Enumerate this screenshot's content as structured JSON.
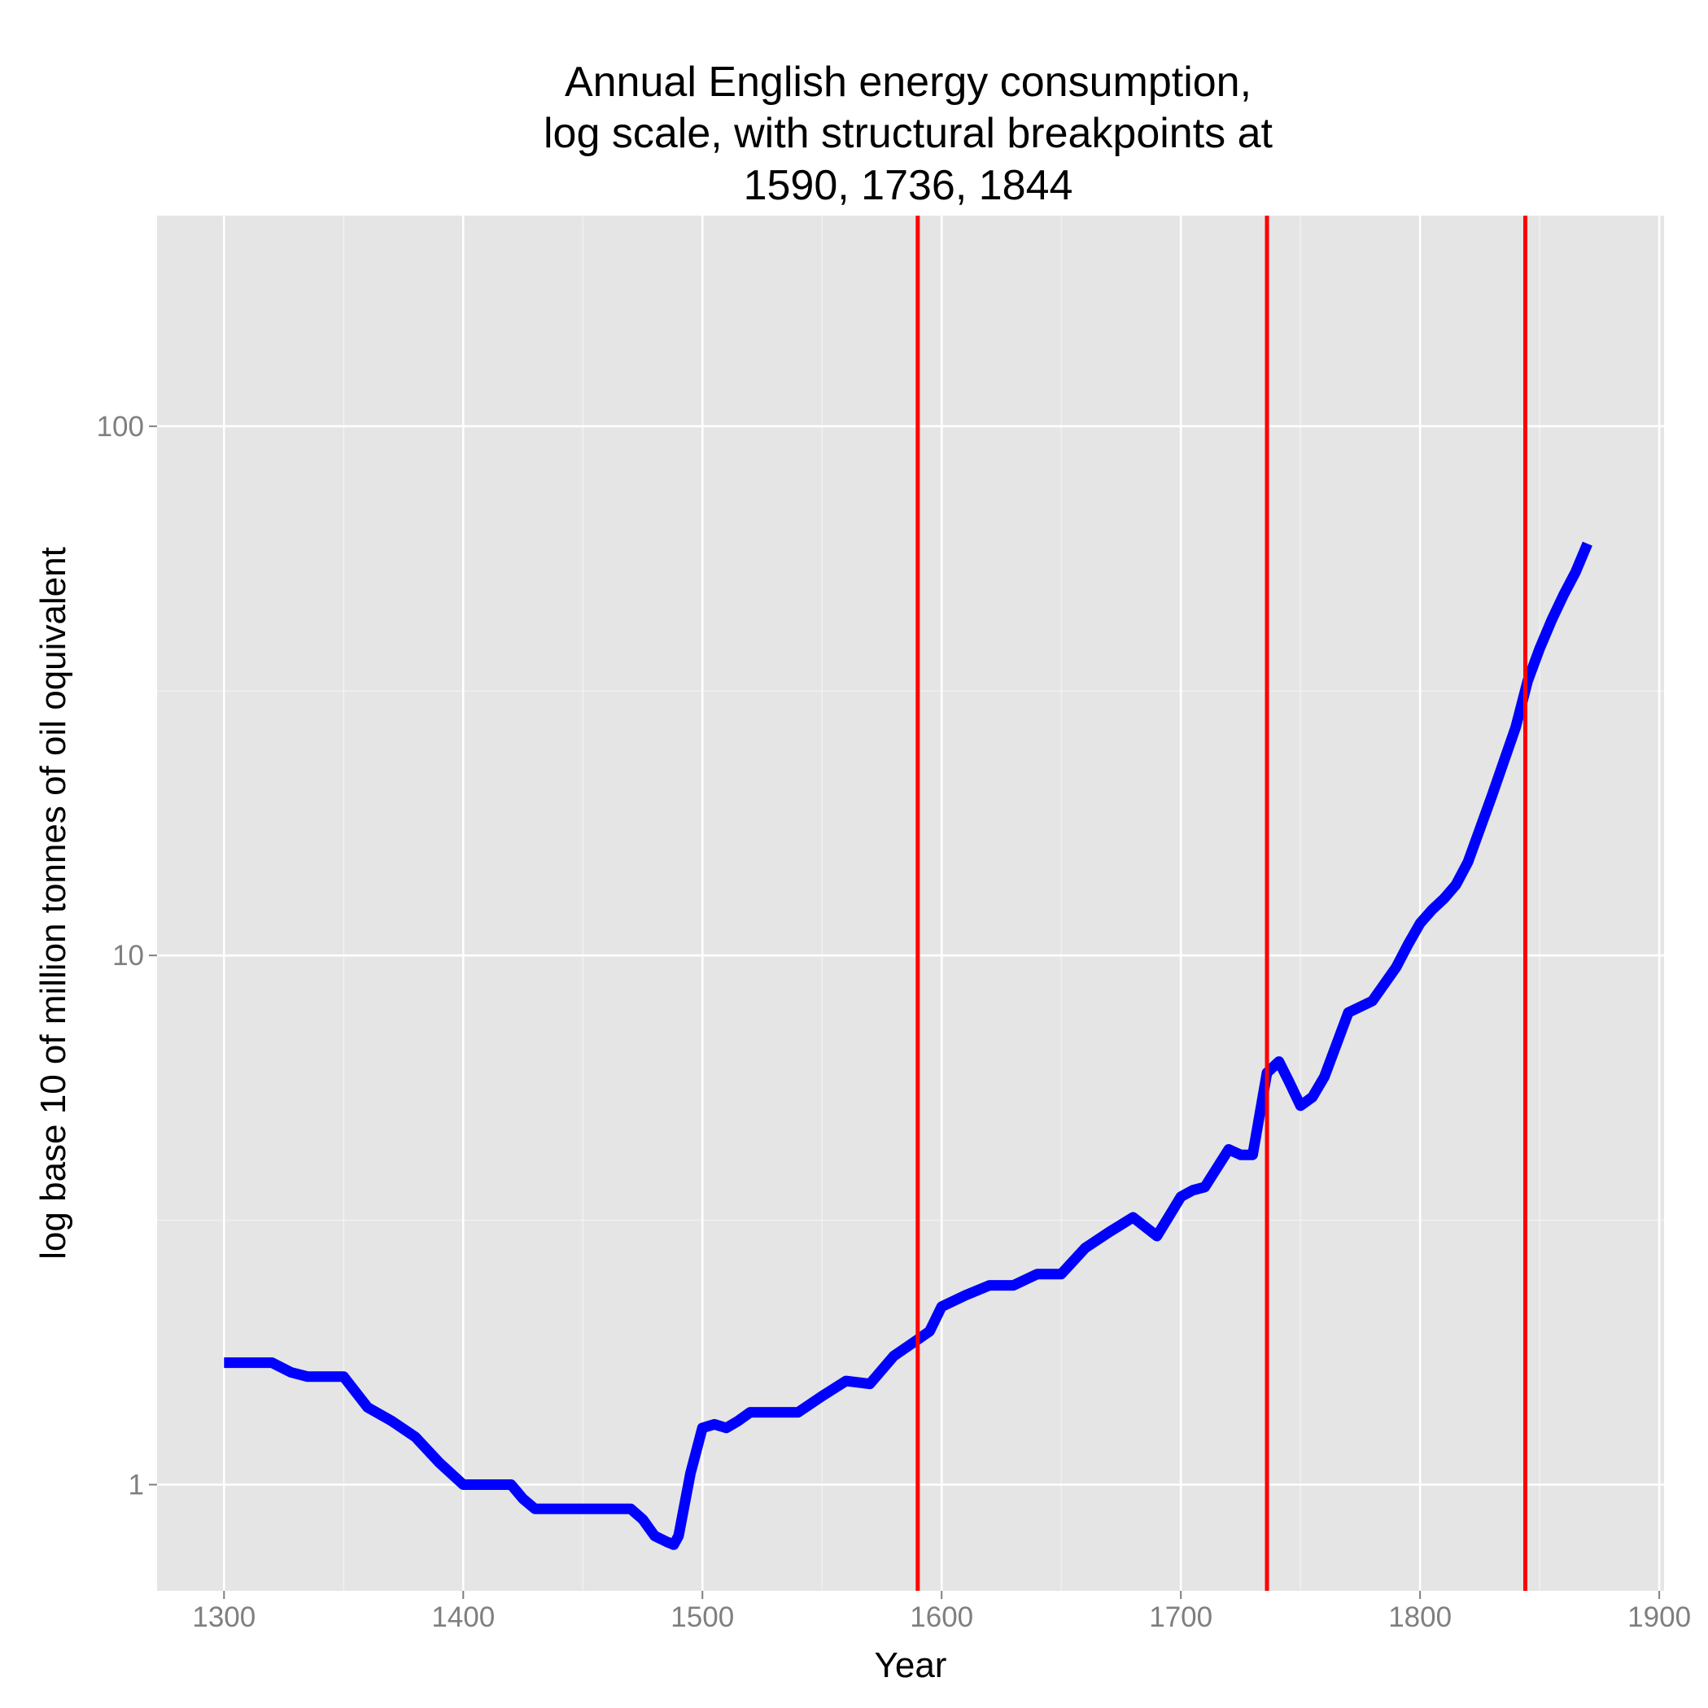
{
  "chart_data": {
    "type": "line",
    "title_lines": [
      "Annual English energy consumption,",
      "log scale, with structural breakpoints at",
      "1590, 1736, 1844"
    ],
    "xlabel": "Year",
    "ylabel": "log base 10 of million tonnes of oil oquivalent",
    "x_scale": "linear",
    "y_scale": "log10",
    "xlim": [
      1272,
      1902
    ],
    "ylim": [
      0.63,
      250
    ],
    "x_ticks": [
      1300,
      1400,
      1500,
      1600,
      1700,
      1800,
      1900
    ],
    "x_tick_labels": [
      "1300",
      "1400",
      "1500",
      "1600",
      "1700",
      "1800",
      "1900"
    ],
    "y_ticks": [
      1,
      10,
      100
    ],
    "y_tick_labels": [
      "1",
      "10",
      "100"
    ],
    "y_minor_ticks": [
      0.316,
      3.16,
      31.6
    ],
    "x_minor_ticks": [
      1350,
      1450,
      1550,
      1650,
      1750,
      1850
    ],
    "grid": true,
    "background": "#e5e5e5",
    "grid_color": "#ffffff",
    "series": [
      {
        "color": "#0000ff",
        "x": [
          1300,
          1320,
          1328,
          1335,
          1350,
          1360,
          1370,
          1380,
          1390,
          1400,
          1410,
          1420,
          1425,
          1430,
          1440,
          1450,
          1460,
          1470,
          1475,
          1480,
          1485,
          1488,
          1490,
          1495,
          1500,
          1505,
          1510,
          1515,
          1520,
          1530,
          1540,
          1550,
          1560,
          1570,
          1580,
          1590,
          1595,
          1600,
          1610,
          1620,
          1630,
          1640,
          1650,
          1660,
          1670,
          1680,
          1690,
          1700,
          1705,
          1710,
          1720,
          1725,
          1730,
          1736,
          1741,
          1745,
          1750,
          1755,
          1760,
          1770,
          1780,
          1790,
          1795,
          1800,
          1805,
          1810,
          1815,
          1820,
          1830,
          1840,
          1845,
          1850,
          1855,
          1860,
          1865,
          1870
        ],
        "values": [
          1.7,
          1.7,
          1.63,
          1.6,
          1.6,
          1.4,
          1.32,
          1.23,
          1.1,
          1.0,
          1.0,
          1.0,
          0.94,
          0.9,
          0.9,
          0.9,
          0.9,
          0.9,
          0.86,
          0.8,
          0.78,
          0.77,
          0.8,
          1.05,
          1.28,
          1.3,
          1.28,
          1.32,
          1.37,
          1.37,
          1.37,
          1.47,
          1.57,
          1.55,
          1.75,
          1.88,
          1.95,
          2.17,
          2.28,
          2.38,
          2.38,
          2.5,
          2.5,
          2.8,
          3.0,
          3.2,
          2.95,
          3.5,
          3.6,
          3.65,
          4.3,
          4.2,
          4.2,
          6.0,
          6.3,
          5.8,
          5.2,
          5.4,
          5.9,
          7.8,
          8.2,
          9.5,
          10.5,
          11.5,
          12.2,
          12.8,
          13.6,
          15.0,
          20.0,
          27.0,
          33.0,
          38.0,
          43.0,
          48.0,
          53.0,
          60.0
        ]
      }
    ],
    "vlines": {
      "color": "#ff0000",
      "x": [
        1590,
        1736,
        1844
      ]
    }
  }
}
